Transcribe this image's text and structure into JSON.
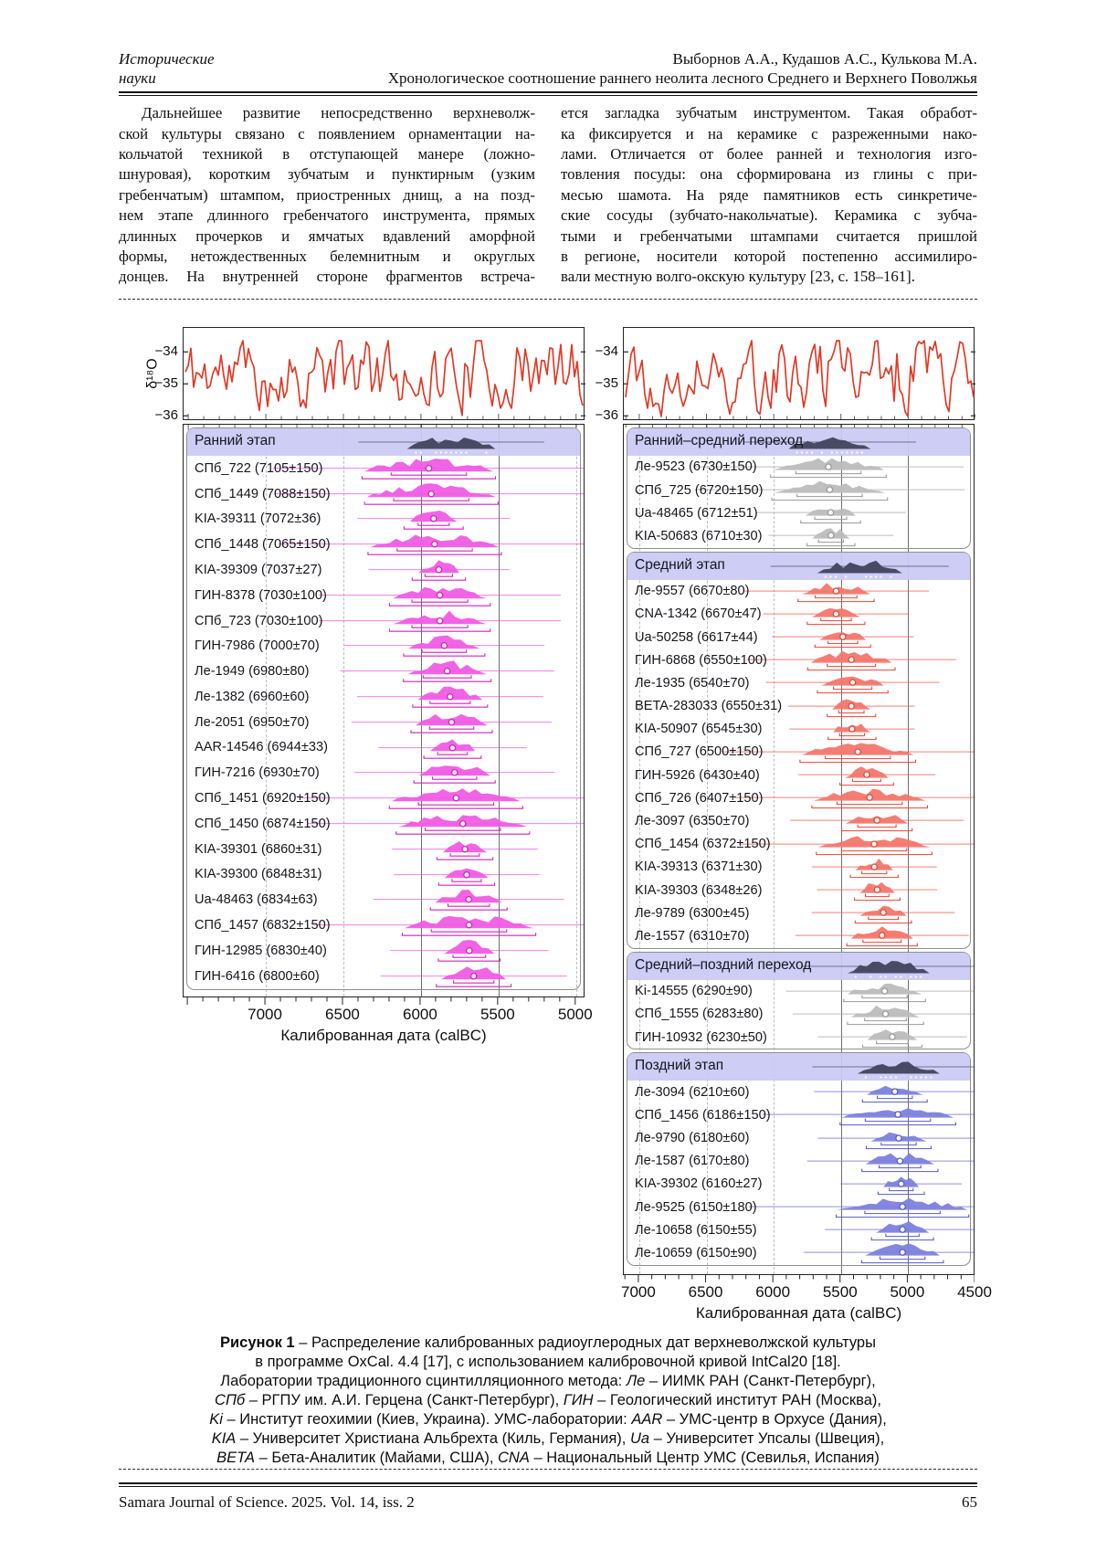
{
  "page": {
    "header": {
      "left_line1": "Исторические",
      "left_line2": "науки",
      "right_authors": "Выборнов А.А., Кудашов А.С., Кулькова М.А.",
      "right_title": "Хронологическое соотношение раннего неолита лесного Среднего и Верхнего Поволжья"
    },
    "body": {
      "left_lines": [
        "Дальнейшее развитие непосредственно верхневолж-",
        "ской культуры связано с появлением орнаментации на-",
        "кольчатой техникой в отступающей манере (ложно-",
        "шнуровая), коротким зубчатым и пунктирным (узким",
        "гребенчатым) штампом, приостренных днищ, а на позд-",
        "нем этапе длинного гребенчатого инструмента, прямых",
        "длинных прочерков и ямчатых вдавлений аморфной",
        "формы, нетождественных белемнитным и округлых",
        "донцев. На внутренней стороне фрагментов встреча-"
      ],
      "right_lines": [
        "ется загладка зубчатым инструментом. Такая обработ-",
        "ка фиксируется и на керамике с разреженными нако-",
        "лами. Отличается от более ранней и технология изго-",
        "товления посуды: она сформирована из глины с при-",
        "месью шамота. На ряде памятников есть синкретиче-",
        "ские сосуды (зубчато-накольчатые). Керамика с зубча-",
        "тыми и гребенчатыми штампами считается пришлой",
        "в регионе, носители которой постепенно ассимилиро-",
        "вали местную волго-окскую культуру [23, с. 158–161]."
      ]
    },
    "footer": {
      "journal": "Samara Journal of Science. 2025. Vol. 14, iss. 2",
      "page_number": "65"
    }
  },
  "caption_lines": [
    [
      {
        "s": "b",
        "t": "Рисунок 1"
      },
      {
        "t": " – Распределение калиброванных радиоуглеродных дат верхневолжской культуры"
      }
    ],
    [
      {
        "t": "в программе OxCal. 4.4 [17], с использованием калибровочной кривой IntCal20 [18]."
      }
    ],
    [
      {
        "t": "Лаборатории традиционного сцинтилляционного метода: "
      },
      {
        "s": "i",
        "t": "Ле"
      },
      {
        "t": " – ИИМК РАН (Санкт-Петербург),"
      }
    ],
    [
      {
        "s": "i",
        "t": "СПб"
      },
      {
        "t": " – РГПУ им. А.И. Герцена (Санкт-Петербург), "
      },
      {
        "s": "i",
        "t": "ГИН"
      },
      {
        "t": " – Геологический институт РАН (Москва),"
      }
    ],
    [
      {
        "s": "i",
        "t": "Ki"
      },
      {
        "t": " – Институт геохимии (Киев, Украина). УМС-лаборатории: "
      },
      {
        "s": "i",
        "t": "AAR"
      },
      {
        "t": " – УМС-центр в Орхусе (Дания),"
      }
    ],
    [
      {
        "s": "i",
        "t": "KIA"
      },
      {
        "t": " – Университет Христиана Альбрехта (Киль, Германия), "
      },
      {
        "s": "i",
        "t": "Ua"
      },
      {
        "t": " – Университет Упсалы (Швеция),"
      }
    ],
    [
      {
        "s": "i",
        "t": "BETA"
      },
      {
        "t": " – Бета-Аналитик (Майами, США), "
      },
      {
        "s": "i",
        "t": "CNA"
      },
      {
        "t": " – Национальный Центр УМС (Севилья, Испания)"
      }
    ]
  ],
  "chart_data": {
    "type": "oxcal_calibration_multiplot",
    "x_label": "Калиброванная дата (calBC)",
    "d18o": {
      "ylabel": "δ¹⁸O",
      "yticks": [
        -34,
        -35,
        -36
      ],
      "curve_color": "#df3b28",
      "range": [
        -36.2,
        -33.6
      ]
    },
    "palettes": {
      "magenta": {
        "fill": "#ef5ce4",
        "line": "#e93fd4",
        "edge": "#d423be"
      },
      "red": {
        "fill": "#f3776d",
        "line": "#ee5a4d",
        "edge": "#e74638"
      },
      "gray": {
        "fill": "#bcbcbc",
        "line": "#a6a6a6",
        "edge": "#999999"
      },
      "blue": {
        "fill": "#7d81dd",
        "line": "#6a6ed6",
        "edge": "#565cc9"
      },
      "band": {
        "fill": "#45455e",
        "line": "#5b5b74",
        "bg": "rgba(201,201,245,0.93)"
      }
    },
    "panels": [
      {
        "id": "left",
        "has_ylabel": true,
        "seed": 11,
        "axis_years": [
          7530,
          4940
        ],
        "x_ticks": [
          7000,
          6500,
          6000,
          5500,
          5000
        ],
        "solid_grid_years": [
          6000,
          5500
        ],
        "sections": [
          {
            "label": "Ранний этап",
            "palette": "magenta",
            "dates": [
              {
                "label": "СПб_722 (7105±150)",
                "bp": 7105,
                "sigma": 150
              },
              {
                "label": "СПб_1449 (7088±150)",
                "bp": 7088,
                "sigma": 150
              },
              {
                "label": "KIA-39311 (7072±36)",
                "bp": 7072,
                "sigma": 36
              },
              {
                "label": "СПб_1448 (7065±150)",
                "bp": 7065,
                "sigma": 150
              },
              {
                "label": "KIA-39309 (7037±27)",
                "bp": 7037,
                "sigma": 27
              },
              {
                "label": "ГИН-8378 (7030±100)",
                "bp": 7030,
                "sigma": 100
              },
              {
                "label": "СПб_723 (7030±100)",
                "bp": 7030,
                "sigma": 100
              },
              {
                "label": "ГИН-7986 (7000±70)",
                "bp": 7000,
                "sigma": 70
              },
              {
                "label": "Ле-1949 (6980±80)",
                "bp": 6980,
                "sigma": 80
              },
              {
                "label": "Ле-1382 (6960±60)",
                "bp": 6960,
                "sigma": 60
              },
              {
                "label": "Ле-2051 (6950±70)",
                "bp": 6950,
                "sigma": 70
              },
              {
                "label": "AAR-14546 (6944±33)",
                "bp": 6944,
                "sigma": 33
              },
              {
                "label": "ГИН-7216 (6930±70)",
                "bp": 6930,
                "sigma": 70
              },
              {
                "label": "СПб_1451 (6920±150)",
                "bp": 6920,
                "sigma": 150
              },
              {
                "label": "СПб_1450 (6874±150)",
                "bp": 6874,
                "sigma": 150
              },
              {
                "label": "KIA-39301 (6860±31)",
                "bp": 6860,
                "sigma": 31
              },
              {
                "label": "KIA-39300 (6848±31)",
                "bp": 6848,
                "sigma": 31
              },
              {
                "label": "Ua-48463 (6834±63)",
                "bp": 6834,
                "sigma": 63
              },
              {
                "label": "СПб_1457 (6832±150)",
                "bp": 6832,
                "sigma": 150
              },
              {
                "label": "ГИН-12985 (6830±40)",
                "bp": 6830,
                "sigma": 40
              },
              {
                "label": "ГИН-6416 (6800±60)",
                "bp": 6800,
                "sigma": 60
              }
            ]
          }
        ]
      },
      {
        "id": "right",
        "has_ylabel": false,
        "seed": 77,
        "axis_years": [
          7115,
          4500
        ],
        "x_ticks": [
          7000,
          6500,
          6000,
          5500,
          5000,
          4500
        ],
        "solid_grid_years": [
          5500,
          5000
        ],
        "sections": [
          {
            "label": "Ранний–средний переход",
            "palette": "gray",
            "dates": [
              {
                "label": "Ле-9523 (6730±150)",
                "bp": 6730,
                "sigma": 150
              },
              {
                "label": "СПб_725 (6720±150)",
                "bp": 6720,
                "sigma": 150
              },
              {
                "label": "Ua-48465 (6712±51)",
                "bp": 6712,
                "sigma": 51
              },
              {
                "label": "KIA-50683 (6710±30)",
                "bp": 6710,
                "sigma": 30
              }
            ]
          },
          {
            "label": "Средний этап",
            "palette": "red",
            "dates": [
              {
                "label": "Ле-9557 (6670±80)",
                "bp": 6670,
                "sigma": 80
              },
              {
                "label": "CNA-1342 (6670±47)",
                "bp": 6670,
                "sigma": 47
              },
              {
                "label": "Ua-50258 (6617±44)",
                "bp": 6617,
                "sigma": 44
              },
              {
                "label": "ГИН-6868 (6550±100)",
                "bp": 6550,
                "sigma": 100
              },
              {
                "label": "Ле-1935 (6540±70)",
                "bp": 6540,
                "sigma": 70
              },
              {
                "label": "BETA-283033 (6550±31)",
                "bp": 6550,
                "sigma": 31
              },
              {
                "label": "KIA-50907 (6545±30)",
                "bp": 6545,
                "sigma": 30
              },
              {
                "label": "СПб_727 (6500±150)",
                "bp": 6500,
                "sigma": 150
              },
              {
                "label": "ГИН-5926 (6430±40)",
                "bp": 6430,
                "sigma": 40
              },
              {
                "label": "СПб_726 (6407±150)",
                "bp": 6407,
                "sigma": 150
              },
              {
                "label": "Ле-3097 (6350±70)",
                "bp": 6350,
                "sigma": 70
              },
              {
                "label": "СПб_1454 (6372±150)",
                "bp": 6372,
                "sigma": 150
              },
              {
                "label": "KIA-39313 (6371±30)",
                "bp": 6371,
                "sigma": 30
              },
              {
                "label": "KIA-39303 (6348±26)",
                "bp": 6348,
                "sigma": 26
              },
              {
                "label": "Ле-9789 (6300±45)",
                "bp": 6300,
                "sigma": 45
              },
              {
                "label": "Ле-1557 (6310±70)",
                "bp": 6310,
                "sigma": 70
              }
            ]
          },
          {
            "label": "Средний–поздний переход",
            "palette": "gray",
            "dates": [
              {
                "label": "Ki-14555 (6290±90)",
                "bp": 6290,
                "sigma": 90
              },
              {
                "label": "СПб_1555 (6283±80)",
                "bp": 6283,
                "sigma": 80
              },
              {
                "label": "ГИН-10932 (6230±50)",
                "bp": 6230,
                "sigma": 50
              }
            ]
          },
          {
            "label": "Поздний этап",
            "palette": "blue",
            "dates": [
              {
                "label": "Ле-3094 (6210±60)",
                "bp": 6210,
                "sigma": 60
              },
              {
                "label": "СПб_1456 (6186±150)",
                "bp": 6186,
                "sigma": 150
              },
              {
                "label": "Ле-9790 (6180±60)",
                "bp": 6180,
                "sigma": 60
              },
              {
                "label": "Ле-1587 (6170±80)",
                "bp": 6170,
                "sigma": 80
              },
              {
                "label": "KIA-39302 (6160±27)",
                "bp": 6160,
                "sigma": 27
              },
              {
                "label": "Ле-9525 (6150±180)",
                "bp": 6150,
                "sigma": 180
              },
              {
                "label": "Ле-10658 (6150±55)",
                "bp": 6150,
                "sigma": 55
              },
              {
                "label": "Ле-10659 (6150±90)",
                "bp": 6150,
                "sigma": 90
              }
            ]
          }
        ]
      }
    ]
  }
}
